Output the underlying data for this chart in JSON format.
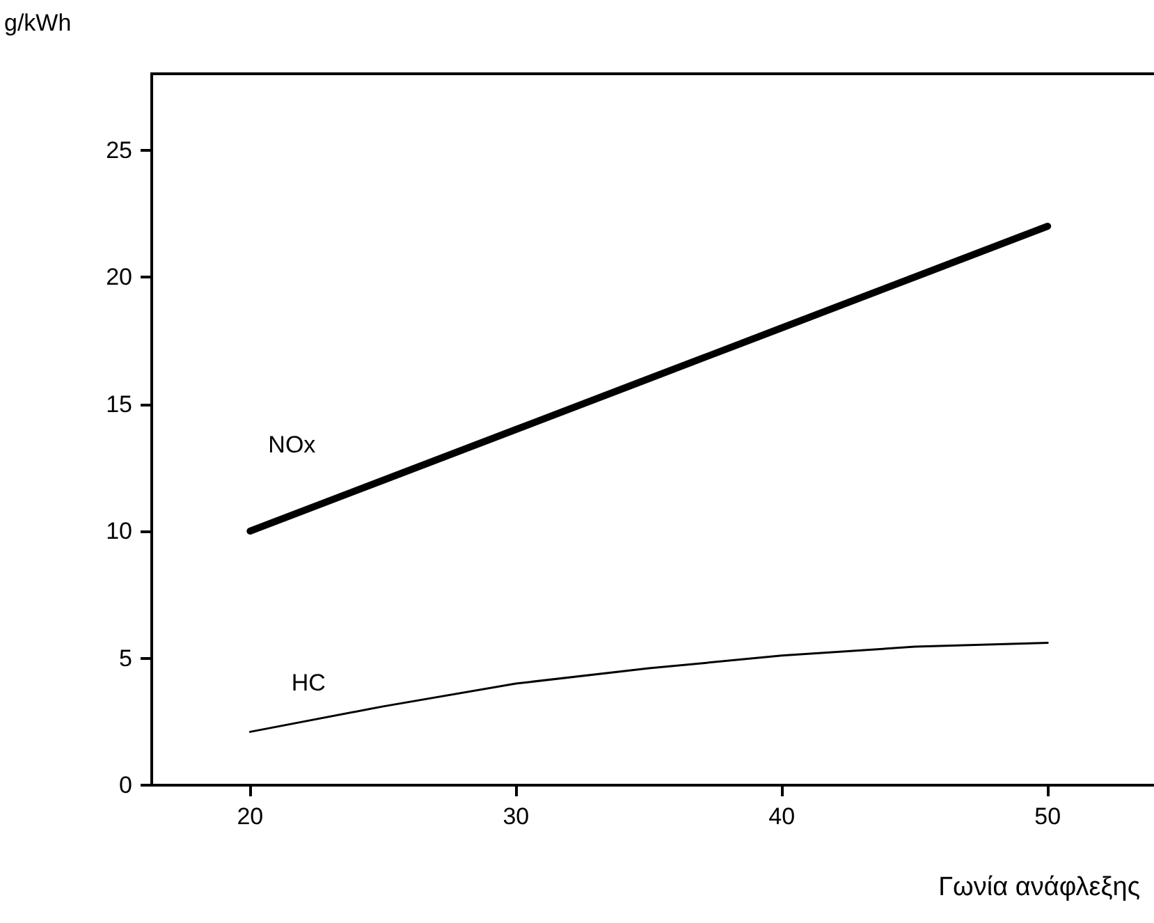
{
  "chart_data": {
    "type": "line",
    "xlabel": "Γωνία ανάφλεξης",
    "ylabel": "g/kWh",
    "x": [
      20,
      25,
      30,
      35,
      40,
      45,
      50
    ],
    "series": [
      {
        "name": "NOx",
        "color": "#000000",
        "values": [
          10,
          12,
          14,
          16,
          18,
          20,
          22
        ]
      },
      {
        "name": "HC",
        "color": "#000000",
        "values": [
          2.1,
          3.1,
          4.0,
          4.6,
          5.1,
          5.45,
          5.6
        ]
      }
    ],
    "xlim": [
      16.3,
      54
    ],
    "xticks": [
      20,
      30,
      40,
      50
    ],
    "ylim": [
      0,
      28
    ],
    "yticks": [
      0,
      5,
      10,
      15,
      20,
      25
    ],
    "grid": false,
    "legend": false,
    "marker": "none",
    "line_style": "solid"
  }
}
